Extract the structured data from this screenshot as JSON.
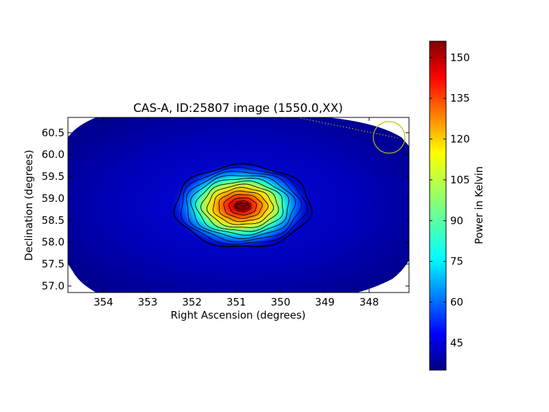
{
  "chart_data": {
    "type": "heatmap",
    "title": "CAS-A, ID:25807 image (1550.0,XX)",
    "xlabel": "Right Ascension (degrees)",
    "ylabel": "Declination (degrees)",
    "xlim": [
      354.8,
      347.1
    ],
    "ylim": [
      56.85,
      60.85
    ],
    "x_ticks": [
      354,
      353,
      352,
      351,
      350,
      349,
      348
    ],
    "y_ticks": [
      57.0,
      57.5,
      58.0,
      58.5,
      59.0,
      59.5,
      60.0,
      60.5
    ],
    "x_tick_labels": [
      "354",
      "353",
      "352",
      "351",
      "350",
      "349",
      "348"
    ],
    "y_tick_labels": [
      "57.0",
      "57.5",
      "58.0",
      "58.5",
      "59.0",
      "59.5",
      "60.0",
      "60.5"
    ],
    "colorbar": {
      "label": "Power in Kelvin",
      "range": [
        35,
        156
      ],
      "ticks": [
        45,
        60,
        75,
        90,
        105,
        120,
        135,
        150
      ],
      "tick_labels": [
        "45",
        "60",
        "75",
        "90",
        "105",
        "120",
        "135",
        "150"
      ],
      "colormap": "jet"
    },
    "source": {
      "name": "CAS-A",
      "ra": 350.85,
      "dec": 58.82,
      "peak_power": 155,
      "background_power": 38
    },
    "beam_marker": {
      "ra": 347.45,
      "dec": 60.38,
      "color": "#bfbf00"
    },
    "grid": false,
    "legend": "none"
  }
}
